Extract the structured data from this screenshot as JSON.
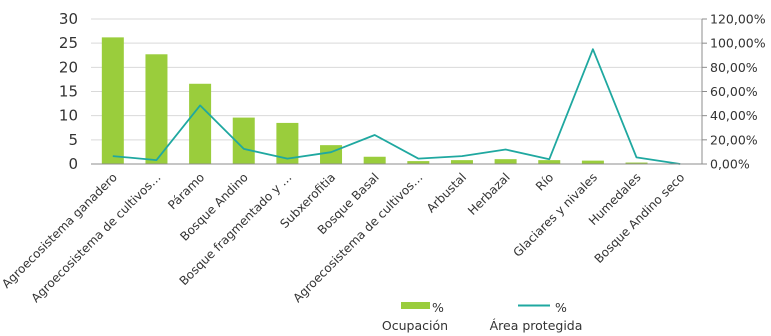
{
  "chart_data": {
    "type": "bar",
    "categories": [
      "Agroecosistema ganadero",
      "Agroecosistema de cultivos…",
      "Páramo",
      "Bosque Andino",
      "Bosque fragmentado y …",
      "Subxerofitia",
      "Bosque Basal",
      "Agroecosistema de cultivos…",
      "Arbustal",
      "Herbazal",
      "Río",
      "Glaciares y nivales",
      "Humedales",
      "Bosque Andino seco"
    ],
    "series": [
      {
        "name": "% Ocupación",
        "type": "bar",
        "axis": "left",
        "values": [
          26.2,
          22.7,
          16.6,
          9.6,
          8.5,
          3.9,
          1.5,
          0.6,
          0.8,
          1.0,
          0.8,
          0.7,
          0.3,
          0.0
        ]
      },
      {
        "name": "% Área protegida",
        "type": "line",
        "axis": "right",
        "values": [
          6.5,
          3.2,
          48.5,
          12.5,
          4.5,
          9.8,
          24.0,
          4.5,
          6.5,
          12.0,
          4.0,
          95.0,
          5.5,
          0.0
        ]
      }
    ],
    "y_left": {
      "ylim": [
        0,
        30
      ],
      "ticks": [
        "0",
        "5",
        "10",
        "15",
        "20",
        "25",
        "30"
      ]
    },
    "y_right": {
      "ylim": [
        0,
        120
      ],
      "ticks": [
        "0,00%",
        "20,00%",
        "40,00%",
        "60,00%",
        "80,00%",
        "100,00%",
        "120,00%"
      ]
    },
    "grid": true,
    "legend_position": "bottom",
    "colors": {
      "bar": "#9ACD3C",
      "line": "#1FA8A0",
      "grid": "#d9d9d9",
      "axis": "#8c8c8c"
    },
    "legend": [
      {
        "symbol": "%",
        "label": "Ocupación"
      },
      {
        "symbol": "%",
        "label": "Área protegida"
      }
    ]
  }
}
